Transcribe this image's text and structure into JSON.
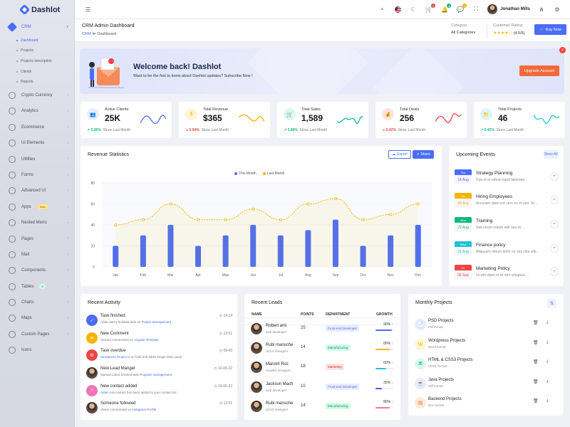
{
  "app": {
    "name": "Dashlot"
  },
  "sidebar": {
    "items": [
      {
        "label": "CRM",
        "icon": "crm-icon"
      },
      {
        "label": "Crypto Currency",
        "icon": "bitcoin-icon"
      },
      {
        "label": "Analytics",
        "icon": "analytics-icon"
      },
      {
        "label": "Ecommerce",
        "icon": "cart-icon"
      },
      {
        "label": "Ui Elements",
        "icon": "ui-elements-icon"
      },
      {
        "label": "Utilities",
        "icon": "utilities-icon"
      },
      {
        "label": "Forms",
        "icon": "forms-icon"
      },
      {
        "label": "Advanced Ui",
        "icon": "advanced-ui-icon"
      },
      {
        "label": "Apps",
        "icon": "apps-icon",
        "badge": "New"
      },
      {
        "label": "Nested Menu",
        "icon": "nested-menu-icon"
      },
      {
        "label": "Pages",
        "icon": "pages-icon"
      },
      {
        "label": "Mail",
        "icon": "mail-icon"
      },
      {
        "label": "Components",
        "icon": "components-icon"
      },
      {
        "label": "Tables",
        "icon": "tables-icon",
        "badge": "3"
      },
      {
        "label": "Charts",
        "icon": "charts-icon"
      },
      {
        "label": "Maps",
        "icon": "maps-icon"
      },
      {
        "label": "Custom Pages",
        "icon": "custom-pages-icon"
      },
      {
        "label": "Icons",
        "icon": "icons-icon"
      }
    ],
    "crm_sub": [
      "Dashboard",
      "Projects",
      "Projects description",
      "Clients",
      "Reports"
    ]
  },
  "topbar": {
    "user_name": "Jonathan Mills",
    "badges": {
      "cart": "5",
      "notifications": "4",
      "messages": "3",
      "chat": "2"
    }
  },
  "pagehead": {
    "title": "CRM Admin Dashboard",
    "breadcrumb_root": "CRM",
    "breadcrumb_current": "Dashboard",
    "category_label": "Category",
    "category_value": "All Categories",
    "rating_label": "Customer Rating",
    "rating_stars": "★★★★☆",
    "rating_value": "(4.5/5)",
    "buy_label": "Buy Now"
  },
  "banner": {
    "title": "Welcome back! Dashlot",
    "subtitle": "Want to be the first to know about Dashlot updates? Subscribe Now !",
    "button": "Upgrade Account"
  },
  "stats": [
    {
      "label": "Active Clients",
      "value": "25K",
      "trend": "0.35%",
      "dir": "up",
      "caption": "Since Last Month",
      "color": "#4a6cf7",
      "bg": "#e8ecfe",
      "icon": "👥"
    },
    {
      "label": "Total Revenue",
      "value": "$365",
      "trend": "0.54%",
      "dir": "down",
      "caption": "Since Last Month",
      "color": "#f5b301",
      "bg": "#fff5d6",
      "icon": "$"
    },
    {
      "label": "Total Sales",
      "value": "1,589",
      "trend": "0.96%",
      "dir": "up",
      "caption": "Since Last Month",
      "color": "#10b981",
      "bg": "#dcf7ee",
      "icon": "🛒"
    },
    {
      "label": "Total Deals",
      "value": "256",
      "trend": "0.42%",
      "dir": "down",
      "caption": "Since Last Month",
      "color": "#ef4444",
      "bg": "#fde3e3",
      "icon": "💰"
    },
    {
      "label": "Total Projects",
      "value": "46",
      "trend": "0.42%",
      "dir": "up",
      "caption": "Since Last Month",
      "color": "#22c3d6",
      "bg": "#dcf6f9",
      "icon": "📁"
    }
  ],
  "revenue": {
    "title": "Revenue Statistics",
    "export_label": "Export",
    "share_label": "Share"
  },
  "chart_data": {
    "type": "bar",
    "categories": [
      "Jan",
      "Feb",
      "Mar",
      "Apr",
      "May",
      "Jun",
      "Jul",
      "Aug",
      "Sep",
      "Oct",
      "Nov",
      "Dec"
    ],
    "ylim": [
      0,
      80
    ],
    "yticks": [
      0,
      20,
      40,
      60,
      80
    ],
    "series": [
      {
        "name": "This Month",
        "type": "bar",
        "color": "#4a6cf7",
        "values": [
          20,
          30,
          40,
          20,
          30,
          40,
          30,
          35,
          45,
          20,
          30,
          40
        ]
      },
      {
        "name": "Last Month",
        "type": "line",
        "color": "#f5b301",
        "values": [
          40,
          45,
          60,
          45,
          45,
          55,
          45,
          60,
          65,
          45,
          50,
          60
        ]
      }
    ],
    "grid": true,
    "legend": "top-center"
  },
  "events": {
    "title": "Upcoming Events",
    "show_all": "Show All",
    "items": [
      {
        "day": "Tue",
        "date": "16 Aug",
        "title": "Strategy Planning",
        "desc": "Duo et et rebum kasd takimata.",
        "color": "#4a6cf7"
      },
      {
        "day": "Thu",
        "date": "18 Aug",
        "title": "Hiring Employees",
        "desc": "Accusam diam est vero no et sed. Te...",
        "color": "#f5b301"
      },
      {
        "day": "Mon",
        "date": "22 Aug",
        "title": "Training",
        "desc": "Stet lorem rebum elitr sea et.",
        "color": "#10b981"
      },
      {
        "day": "Wed",
        "date": "31 Aug",
        "title": "Finance policy",
        "desc": "Aliquyam rebum dolor no sea clita elitr...",
        "color": "#22c3d6"
      },
      {
        "day": "Fri",
        "date": "06 Sep",
        "title": "Marketing Policy",
        "desc": "Ut elitr diam et sit stet voluptua ...",
        "color": "#ef4444"
      }
    ]
  },
  "activity": {
    "title": "Recent Activity",
    "items": [
      {
        "title": "Task finished",
        "desc": "Adam Berry finished task on ",
        "link": "Project Management",
        "time": "14:19",
        "color": "#4a6cf7",
        "icon": "✓"
      },
      {
        "title": "New Comment",
        "desc": "Victoria commented on ",
        "link": "Angular Template",
        "time": "12:01",
        "color": "#f5b301",
        "icon": "✉"
      },
      {
        "title": "Task overdue",
        "desc": "",
        "link": "Wordpress Project",
        "desc2": " is on hold and takes longer than usual",
        "time": "09:43",
        "color": "#ef4444",
        "icon": "⚙"
      },
      {
        "title": "New Lead Manger",
        "desc": "Manuel Labor finished task ",
        "link": "Program management",
        "time": "10-08-22",
        "color": "",
        "icon": ""
      },
      {
        "title": "New contact added",
        "desc": "",
        "link": "Adam Ara",
        "desc2": " contact has been added to your contact list",
        "time": "10-06-22",
        "color": "#f472b6",
        "icon": "+"
      },
      {
        "title": "Someone followed",
        "desc": "Glenn commented on ",
        "link": "Instagram Profile",
        "time": "12:01",
        "color": "",
        "icon": ""
      }
    ]
  },
  "leads": {
    "title": "Recent Leads",
    "headers": {
      "name": "NAME",
      "points": "POINTS",
      "department": "DEPARTMENT",
      "growth": "GROWTH"
    },
    "rows": [
      {
        "name": "Robert anii",
        "job": "web developer",
        "points": "25",
        "dept": "Front-end Developer",
        "dept_color": "#4a6cf7",
        "dept_bg": "#e8ecfe",
        "growth": "90%",
        "growth_num": 90,
        "dir": "up",
        "bar": "#4a6cf7"
      },
      {
        "name": "Rubi mansche",
        "job": "UI/UX Designer",
        "points": "14",
        "dept": "Manufacturing",
        "dept_color": "#059669",
        "dept_bg": "#d1fae5",
        "growth": "80%",
        "growth_num": 80,
        "dir": "down",
        "bar": "#f5b301"
      },
      {
        "name": "Marckh Roz",
        "job": "Graphic Designer",
        "points": "18",
        "dept": "Marketing",
        "dept_color": "#dc2626",
        "dept_bg": "#fde3e3",
        "growth": "60%",
        "growth_num": 60,
        "dir": "up",
        "bar": "#22c3d6"
      },
      {
        "name": "Jackson Mach",
        "job": "web developer",
        "points": "10",
        "dept": "Front-end Developer",
        "dept_color": "#4a6cf7",
        "dept_bg": "#e8ecfe",
        "growth": "35%",
        "growth_num": 35,
        "dir": "down",
        "bar": "#6d4cf7"
      },
      {
        "name": "Rubi mansche",
        "job": "UI/UX Designer",
        "points": "14",
        "dept": "Manufacturing",
        "dept_color": "#059669",
        "dept_bg": "#d1fae5",
        "growth": "80%",
        "growth_num": 80,
        "dir": "down",
        "bar": "#f472b6"
      }
    ]
  },
  "projects": {
    "title": "Monthly Projects",
    "items": [
      {
        "name": "PSD Projects",
        "format": "Pdf format",
        "color": "#4a6cf7",
        "bg": "#e8ecfe",
        "icon": "📄"
      },
      {
        "name": "Wordpress Projects",
        "format": "Word format",
        "color": "#f5b301",
        "bg": "#fff5d6",
        "icon": "W"
      },
      {
        "name": "HTML & CSS3 Projects",
        "format": "HTML format",
        "color": "#10b981",
        "bg": "#dcf7ee",
        "icon": "⌘"
      },
      {
        "name": "Java Projects",
        "format": "Pdf format",
        "color": "#6d4cf7",
        "bg": "#ece8fe",
        "icon": "☕"
      },
      {
        "name": "Backend Projects",
        "format": "Doc format",
        "color": "#f97316",
        "bg": "#ffe9d9",
        "icon": "▤"
      }
    ]
  }
}
